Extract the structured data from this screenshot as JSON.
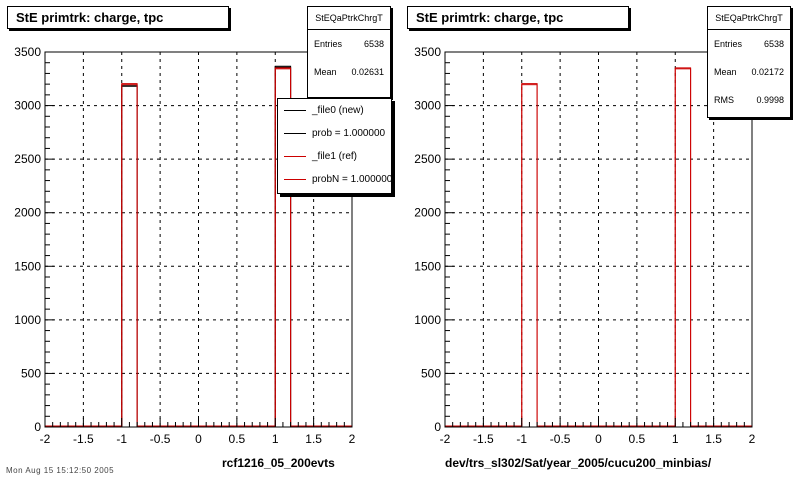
{
  "panels": [
    {
      "title": "StE primtrk: charge, tpc",
      "stats": {
        "name": "StEQaPtrkChrgT",
        "rows": [
          {
            "label": "Entries",
            "value": "6538"
          },
          {
            "label": "Mean",
            "value": "0.02631"
          }
        ]
      },
      "legend": [
        {
          "label": "_file0 (new)",
          "color": "#000000"
        },
        {
          "label": "prob = 1.000000",
          "color": "#000000"
        },
        {
          "label": "_file1 (ref)",
          "color": "#cc0000"
        },
        {
          "label": "probN = 1.000000",
          "color": "#cc0000"
        }
      ],
      "xlabel": "rcf1216_05_200evts",
      "footer": "Mon Aug 15 15:12:50 2005"
    },
    {
      "title": "StE primtrk: charge, tpc",
      "stats": {
        "name": "StEQaPtrkChrgT",
        "rows": [
          {
            "label": "Entries",
            "value": "6538"
          },
          {
            "label": "Mean",
            "value": "0.02172"
          },
          {
            "label": "RMS",
            "value": "0.9998"
          }
        ]
      },
      "xlabel": "dev/trs_sl302/Sat/year_2005/cucu200_minbias/"
    }
  ],
  "chart_data": [
    {
      "type": "bar",
      "histogram": true,
      "xlim": [
        -2,
        2
      ],
      "ylim": [
        0,
        3500
      ],
      "xticks": [
        -2,
        -1.5,
        -1,
        -0.5,
        0,
        0.5,
        1,
        1.5,
        2
      ],
      "yticks": [
        0,
        500,
        1000,
        1500,
        2000,
        2500,
        3000,
        3500
      ],
      "grid": true,
      "legend_position": "top-right",
      "xlabel": "rcf1216_05_200evts",
      "series": [
        {
          "name": "_file0 (new)",
          "color": "#000000",
          "bins": [
            {
              "x0": -1.0,
              "x1": -0.8,
              "y": 3180
            },
            {
              "x0": 1.0,
              "x1": 1.2,
              "y": 3358
            }
          ]
        },
        {
          "name": "_file1 (ref)",
          "color": "#cc0000",
          "bins": [
            {
              "x0": -1.0,
              "x1": -0.8,
              "y": 3195
            },
            {
              "x0": 1.0,
              "x1": 1.2,
              "y": 3343
            }
          ]
        }
      ]
    },
    {
      "type": "bar",
      "histogram": true,
      "xlim": [
        -2,
        2
      ],
      "ylim": [
        0,
        3500
      ],
      "xticks": [
        -2,
        -1.5,
        -1,
        -0.5,
        0,
        0.5,
        1,
        1.5,
        2
      ],
      "yticks": [
        0,
        500,
        1000,
        1500,
        2000,
        2500,
        3000,
        3500
      ],
      "grid": true,
      "xlabel": "dev/trs_sl302/Sat/year_2005/cucu200_minbias/",
      "series": [
        {
          "color": "#cc0000",
          "bins": [
            {
              "x0": -1.0,
              "x1": -0.8,
              "y": 3195
            },
            {
              "x0": 1.0,
              "x1": 1.2,
              "y": 3343
            }
          ]
        }
      ]
    }
  ]
}
